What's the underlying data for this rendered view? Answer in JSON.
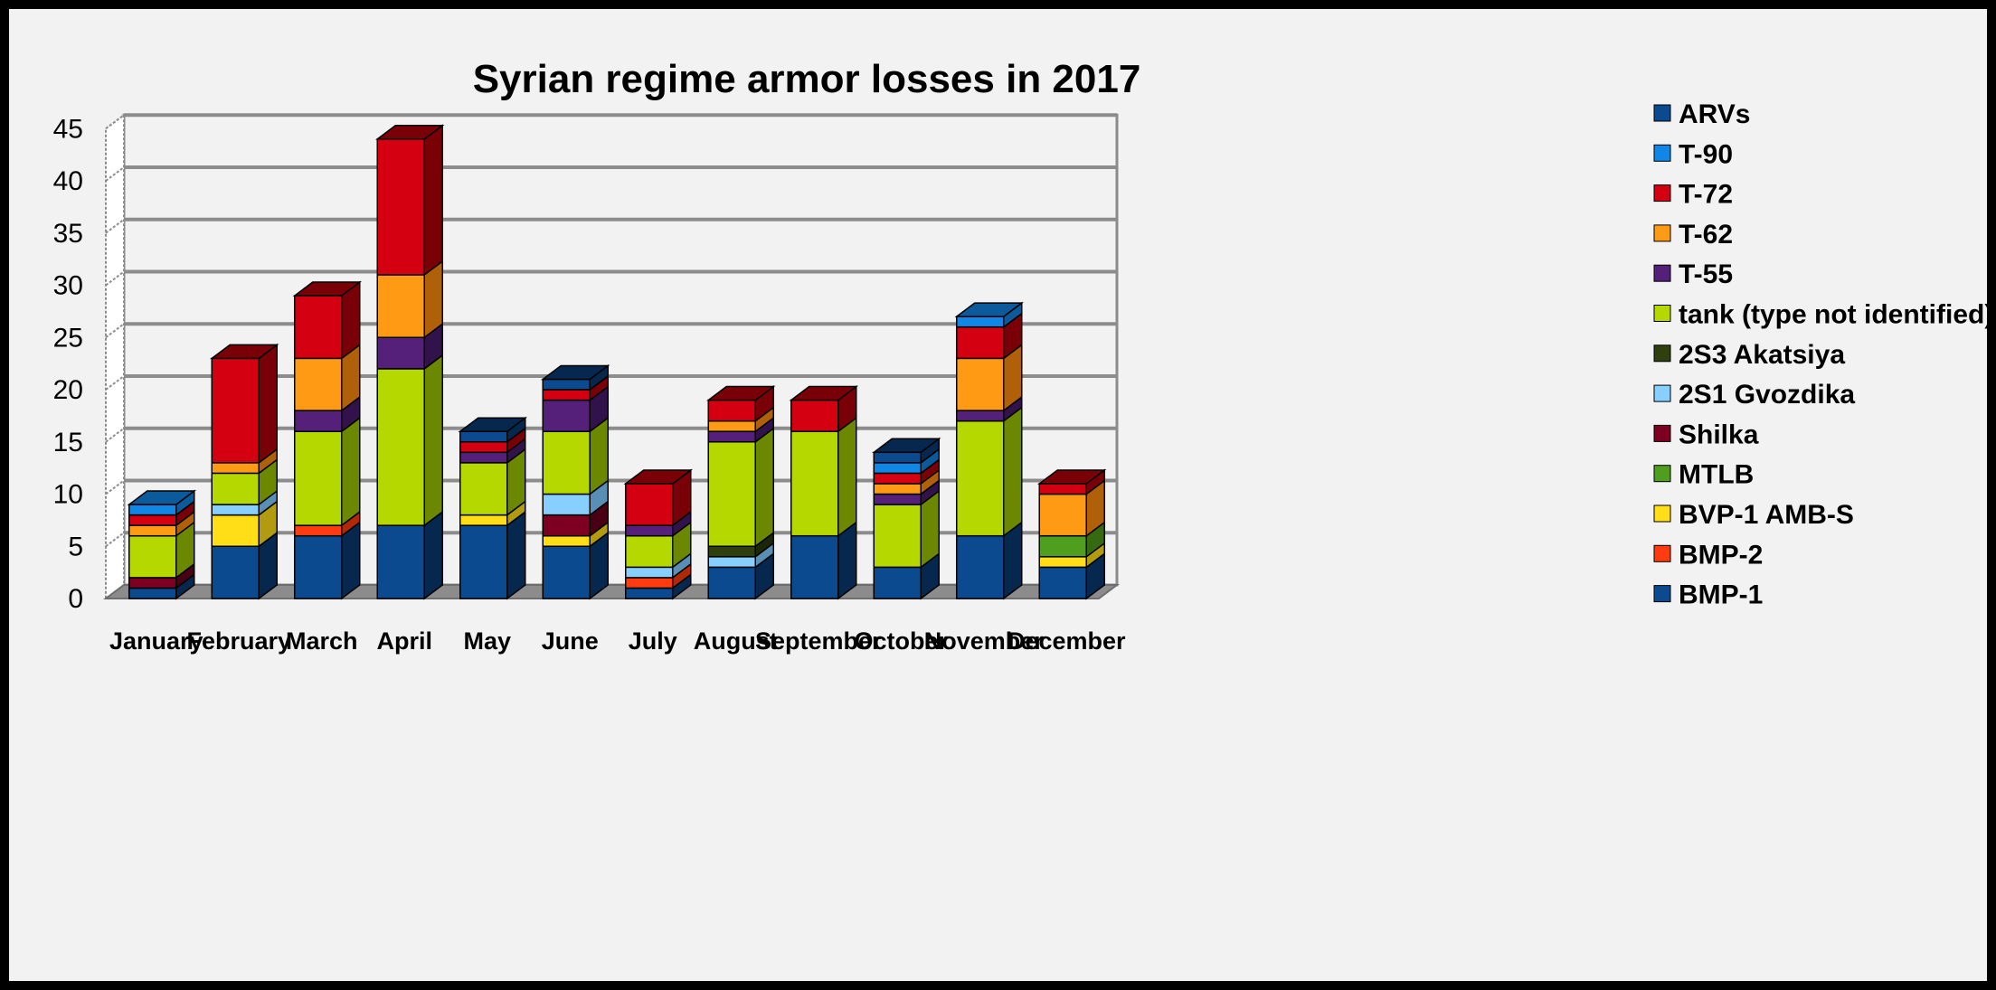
{
  "chart_data": {
    "type": "bar",
    "stacked": true,
    "three_d": true,
    "title": "Syrian regime armor losses in 2017",
    "xlabel": "",
    "ylabel": "",
    "ylim": [
      0,
      45
    ],
    "yticks": [
      0,
      5,
      10,
      15,
      20,
      25,
      30,
      35,
      40,
      45
    ],
    "grid": true,
    "legend_position": "right",
    "categories": [
      "January",
      "February",
      "March",
      "April",
      "May",
      "June",
      "July",
      "August",
      "September",
      "October",
      "November",
      "December"
    ],
    "series": [
      {
        "name": "BMP-1",
        "color": "#0b4a8f",
        "side_color": "#06284f",
        "values": [
          1,
          5,
          6,
          7,
          7,
          5,
          1,
          3,
          6,
          3,
          6,
          3
        ]
      },
      {
        "name": "BMP-2",
        "color": "#ff3b0f",
        "side_color": "#b02808",
        "values": [
          0,
          0,
          1,
          0,
          0,
          0,
          1,
          0,
          0,
          0,
          0,
          0
        ]
      },
      {
        "name": "BVP-1 AMB-S",
        "color": "#ffde17",
        "side_color": "#b39b10",
        "values": [
          0,
          3,
          0,
          0,
          1,
          1,
          0,
          0,
          0,
          0,
          0,
          1
        ]
      },
      {
        "name": "MTLB",
        "color": "#4f9e1d",
        "side_color": "#356a13",
        "values": [
          0,
          0,
          0,
          0,
          0,
          0,
          0,
          0,
          0,
          0,
          0,
          2
        ]
      },
      {
        "name": "Shilka",
        "color": "#7d0022",
        "side_color": "#4a0014",
        "values": [
          1,
          0,
          0,
          0,
          0,
          2,
          0,
          0,
          0,
          0,
          0,
          0
        ]
      },
      {
        "name": "2S1 Gvozdika",
        "color": "#87cfff",
        "side_color": "#5a8fb5",
        "values": [
          0,
          1,
          0,
          0,
          0,
          2,
          1,
          1,
          0,
          0,
          0,
          0
        ]
      },
      {
        "name": "2S3 Akatsiya",
        "color": "#2f3f0d",
        "side_color": "#1c2608",
        "values": [
          0,
          0,
          0,
          0,
          0,
          0,
          0,
          1,
          0,
          0,
          0,
          0
        ]
      },
      {
        "name": "tank (type not identified)",
        "color": "#b5d900",
        "side_color": "#6c8700",
        "values": [
          4,
          3,
          9,
          15,
          5,
          6,
          3,
          10,
          10,
          6,
          11,
          0
        ]
      },
      {
        "name": "T-55",
        "color": "#55207a",
        "side_color": "#32124a",
        "values": [
          0,
          0,
          2,
          3,
          1,
          3,
          1,
          1,
          0,
          1,
          1,
          0
        ]
      },
      {
        "name": "T-62",
        "color": "#ff9a14",
        "side_color": "#b06008",
        "values": [
          1,
          1,
          5,
          6,
          0,
          0,
          0,
          1,
          0,
          1,
          5,
          4
        ]
      },
      {
        "name": "T-72",
        "color": "#d40012",
        "side_color": "#7a0008",
        "values": [
          1,
          10,
          6,
          13,
          1,
          1,
          4,
          2,
          3,
          1,
          3,
          1
        ]
      },
      {
        "name": "T-90",
        "color": "#1087e6",
        "side_color": "#0a5a9c",
        "values": [
          1,
          0,
          0,
          0,
          0,
          0,
          0,
          0,
          0,
          1,
          1,
          0
        ]
      },
      {
        "name": "ARVs",
        "color": "#0b4a8f",
        "side_color": "#06284f",
        "values": [
          0,
          0,
          0,
          0,
          1,
          1,
          0,
          0,
          0,
          1,
          0,
          0
        ]
      }
    ]
  },
  "legend_order": [
    "ARVs",
    "T-90",
    "T-72",
    "T-62",
    "T-55",
    "tank (type not identified)",
    "2S3 Akatsiya",
    "2S1 Gvozdika",
    "Shilka",
    "MTLB",
    "BVP-1 AMB-S",
    "BMP-2",
    "BMP-1"
  ]
}
